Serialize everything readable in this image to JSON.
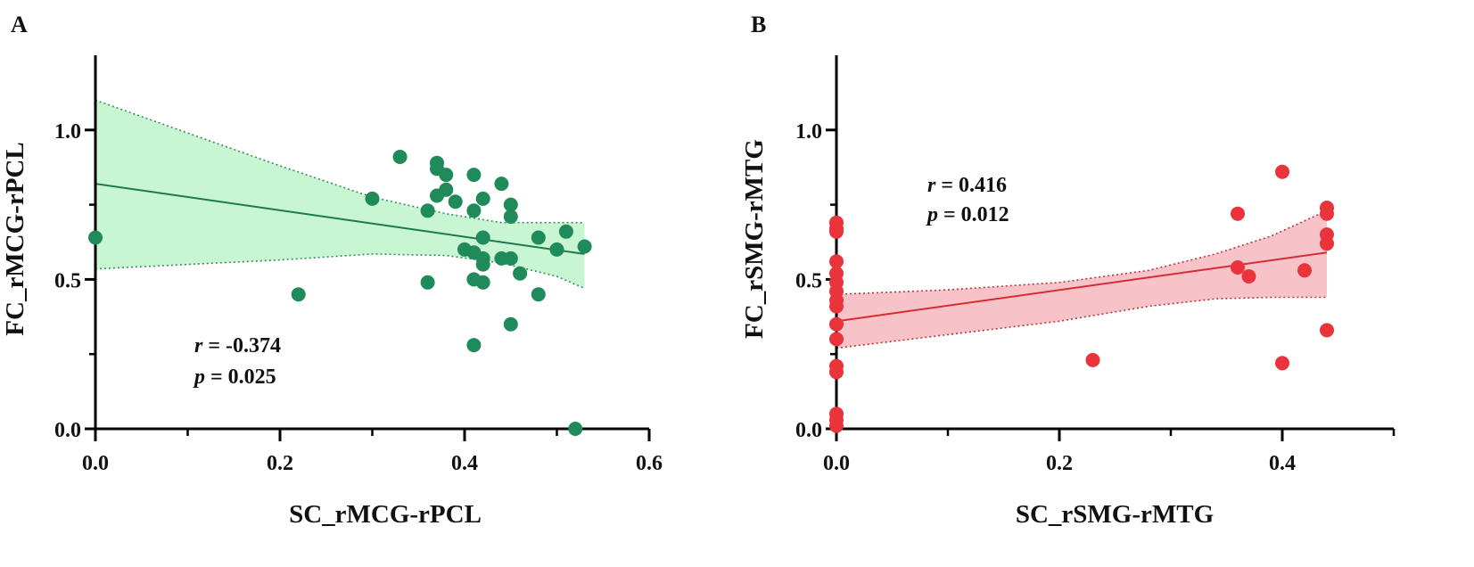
{
  "chart_data": [
    {
      "type": "scatter",
      "panel_label": "A",
      "title": "",
      "xlabel": "SC_rMCG-rPCL",
      "ylabel": "FC_rMCG-rPCL",
      "xlim": [
        0.0,
        0.6
      ],
      "ylim": [
        0.0,
        1.25
      ],
      "x_ticks": [
        0.0,
        0.2,
        0.4,
        0.6
      ],
      "x_tick_labels": [
        "0.0",
        "0.2",
        "0.4",
        "0.6"
      ],
      "x_minor_ticks": [
        0.1,
        0.3,
        0.5
      ],
      "y_ticks": [
        0.0,
        0.5,
        1.0
      ],
      "y_tick_labels": [
        "0.0",
        "0.5",
        "1.0"
      ],
      "y_minor_ticks": [
        0.25,
        0.75
      ],
      "grid": false,
      "point_color": "#1f8a5a",
      "fit_color": "#1d7a4e",
      "band_color": "#c8f5d2",
      "band_edge_color": "#3a8c5e",
      "fit_line": {
        "x": [
          0.0,
          0.53
        ],
        "y": [
          0.82,
          0.585
        ]
      },
      "confidence_band": {
        "x": [
          0.0,
          0.1,
          0.2,
          0.3,
          0.38,
          0.44,
          0.5,
          0.53
        ],
        "upper": [
          1.1,
          0.99,
          0.88,
          0.775,
          0.72,
          0.69,
          0.69,
          0.69
        ],
        "lower": [
          0.535,
          0.55,
          0.565,
          0.585,
          0.58,
          0.555,
          0.51,
          0.47
        ]
      },
      "points": [
        {
          "x": 0.0,
          "y": 0.64
        },
        {
          "x": 0.22,
          "y": 0.45
        },
        {
          "x": 0.3,
          "y": 0.77
        },
        {
          "x": 0.33,
          "y": 0.91
        },
        {
          "x": 0.36,
          "y": 0.73
        },
        {
          "x": 0.36,
          "y": 0.49
        },
        {
          "x": 0.37,
          "y": 0.89
        },
        {
          "x": 0.37,
          "y": 0.87
        },
        {
          "x": 0.37,
          "y": 0.78
        },
        {
          "x": 0.38,
          "y": 0.85
        },
        {
          "x": 0.38,
          "y": 0.8
        },
        {
          "x": 0.39,
          "y": 0.76
        },
        {
          "x": 0.4,
          "y": 0.6
        },
        {
          "x": 0.41,
          "y": 0.85
        },
        {
          "x": 0.41,
          "y": 0.73
        },
        {
          "x": 0.41,
          "y": 0.59
        },
        {
          "x": 0.41,
          "y": 0.5
        },
        {
          "x": 0.41,
          "y": 0.28
        },
        {
          "x": 0.42,
          "y": 0.77
        },
        {
          "x": 0.42,
          "y": 0.64
        },
        {
          "x": 0.42,
          "y": 0.57
        },
        {
          "x": 0.42,
          "y": 0.55
        },
        {
          "x": 0.42,
          "y": 0.49
        },
        {
          "x": 0.44,
          "y": 0.82
        },
        {
          "x": 0.44,
          "y": 0.57
        },
        {
          "x": 0.45,
          "y": 0.75
        },
        {
          "x": 0.45,
          "y": 0.71
        },
        {
          "x": 0.45,
          "y": 0.57
        },
        {
          "x": 0.45,
          "y": 0.35
        },
        {
          "x": 0.46,
          "y": 0.52
        },
        {
          "x": 0.48,
          "y": 0.64
        },
        {
          "x": 0.48,
          "y": 0.45
        },
        {
          "x": 0.5,
          "y": 0.6
        },
        {
          "x": 0.51,
          "y": 0.66
        },
        {
          "x": 0.52,
          "y": 0.0
        },
        {
          "x": 0.53,
          "y": 0.61
        }
      ],
      "annotation": {
        "r_symbol": "r",
        "r_value": " = -0.374",
        "p_symbol": "p",
        "p_value": " = 0.025"
      }
    },
    {
      "type": "scatter",
      "panel_label": "B",
      "title": "",
      "xlabel": "SC_rSMG-rMTG",
      "ylabel": "FC_rSMG-rMTG",
      "xlim": [
        0.0,
        0.5
      ],
      "ylim": [
        0.0,
        1.25
      ],
      "x_ticks": [
        0.0,
        0.2,
        0.4
      ],
      "x_tick_labels": [
        "0.0",
        "0.2",
        "0.4"
      ],
      "x_minor_ticks": [
        0.1,
        0.3,
        0.5
      ],
      "y_ticks": [
        0.0,
        0.5,
        1.0
      ],
      "y_tick_labels": [
        "0.0",
        "0.5",
        "1.0"
      ],
      "y_minor_ticks": [
        0.25,
        0.75
      ],
      "grid": false,
      "point_color": "#e8343a",
      "fit_color": "#d62d35",
      "band_color": "#f7c3c8",
      "band_edge_color": "#b8363e",
      "fit_line": {
        "x": [
          0.0,
          0.44
        ],
        "y": [
          0.36,
          0.59
        ]
      },
      "confidence_band": {
        "x": [
          0.0,
          0.1,
          0.2,
          0.28,
          0.34,
          0.39,
          0.44
        ],
        "upper": [
          0.45,
          0.465,
          0.49,
          0.53,
          0.585,
          0.645,
          0.73
        ],
        "lower": [
          0.27,
          0.315,
          0.36,
          0.41,
          0.435,
          0.44,
          0.44
        ]
      },
      "points": [
        {
          "x": 0.0,
          "y": 0.69
        },
        {
          "x": 0.0,
          "y": 0.67
        },
        {
          "x": 0.0,
          "y": 0.66
        },
        {
          "x": 0.0,
          "y": 0.56
        },
        {
          "x": 0.0,
          "y": 0.52
        },
        {
          "x": 0.0,
          "y": 0.49
        },
        {
          "x": 0.0,
          "y": 0.46
        },
        {
          "x": 0.0,
          "y": 0.43
        },
        {
          "x": 0.0,
          "y": 0.41
        },
        {
          "x": 0.0,
          "y": 0.35
        },
        {
          "x": 0.0,
          "y": 0.3
        },
        {
          "x": 0.0,
          "y": 0.21
        },
        {
          "x": 0.0,
          "y": 0.19
        },
        {
          "x": 0.0,
          "y": 0.05
        },
        {
          "x": 0.0,
          "y": 0.03
        },
        {
          "x": 0.0,
          "y": 0.01
        },
        {
          "x": 0.23,
          "y": 0.23
        },
        {
          "x": 0.36,
          "y": 0.72
        },
        {
          "x": 0.36,
          "y": 0.54
        },
        {
          "x": 0.37,
          "y": 0.51
        },
        {
          "x": 0.4,
          "y": 0.86
        },
        {
          "x": 0.4,
          "y": 0.22
        },
        {
          "x": 0.42,
          "y": 0.53
        },
        {
          "x": 0.44,
          "y": 0.74
        },
        {
          "x": 0.44,
          "y": 0.72
        },
        {
          "x": 0.44,
          "y": 0.65
        },
        {
          "x": 0.44,
          "y": 0.62
        },
        {
          "x": 0.44,
          "y": 0.33
        }
      ],
      "annotation": {
        "r_symbol": "r",
        "r_value": " = 0.416",
        "p_symbol": "p",
        "p_value": " = 0.012"
      }
    }
  ]
}
